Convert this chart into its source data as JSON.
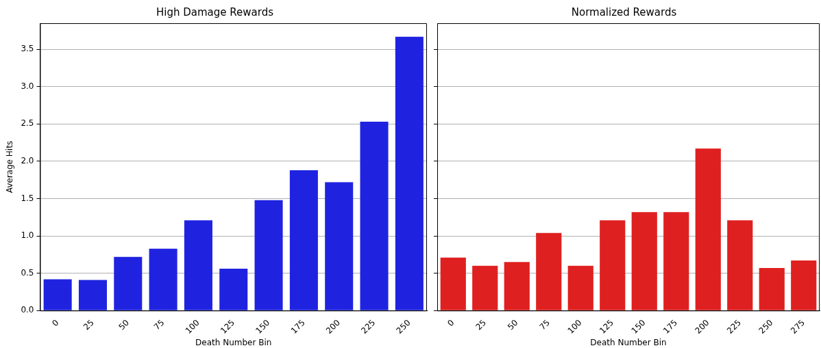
{
  "chart_data": [
    {
      "type": "bar",
      "title": "High Damage Rewards",
      "xlabel": "Death Number Bin",
      "ylabel": "Average Hits",
      "categories": [
        "0",
        "25",
        "50",
        "75",
        "100",
        "125",
        "150",
        "175",
        "200",
        "225",
        "250"
      ],
      "values": [
        0.42,
        0.41,
        0.72,
        0.83,
        1.21,
        0.56,
        1.48,
        1.88,
        1.72,
        2.53,
        3.67
      ],
      "color": "#1f23e0",
      "ylim": [
        0,
        3.85
      ],
      "yticks": [
        {
          "value": 0,
          "label": "0.0"
        },
        0.5,
        {
          "value": 1,
          "label": "1.0"
        },
        1.5,
        {
          "value": 2,
          "label": "2.0"
        },
        2.5,
        {
          "value": 3,
          "label": "3.0"
        },
        3.5
      ],
      "grid": "y"
    },
    {
      "type": "bar",
      "title": "Normalized Rewards",
      "xlabel": "Death Number Bin",
      "categories": [
        "0",
        "25",
        "50",
        "75",
        "100",
        "125",
        "150",
        "175",
        "200",
        "225",
        "250",
        "275"
      ],
      "values": [
        0.71,
        0.6,
        0.65,
        1.04,
        0.6,
        1.21,
        1.32,
        1.32,
        2.17,
        1.21,
        0.57,
        0.67
      ],
      "color": "#df2020",
      "ylim": [
        0,
        3.85
      ],
      "yticks": [
        0,
        0.5,
        1,
        1.5,
        2,
        2.5,
        3,
        3.5
      ],
      "grid": "y",
      "tick_labels": "x"
    }
  ]
}
